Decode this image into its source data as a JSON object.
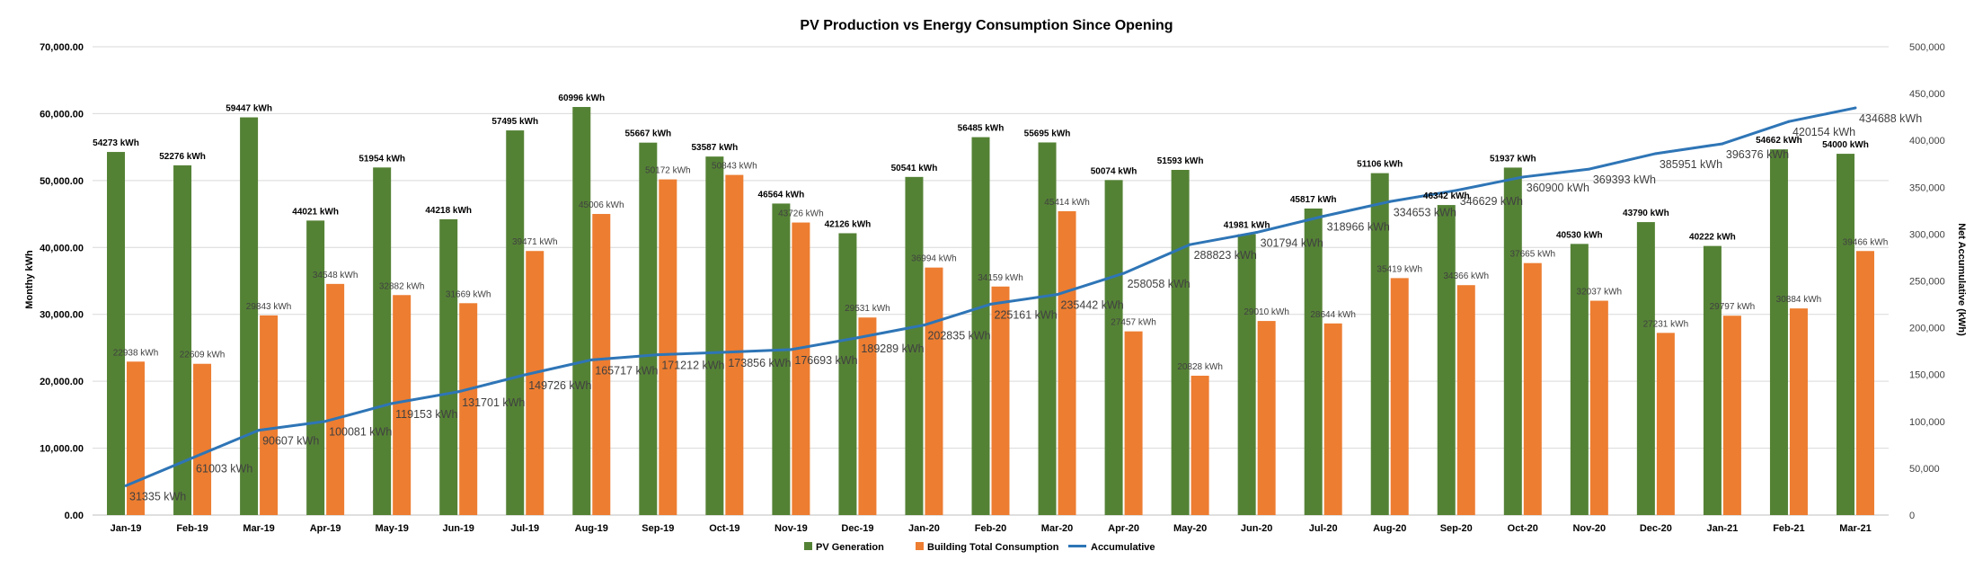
{
  "chart_data": {
    "type": "bar",
    "title": "PV Production vs Energy Consumption Since Opening",
    "ylabel": "Monthy kWh",
    "y2label": "Net Accumulative    (kWh)",
    "ylim": [
      0,
      70000
    ],
    "y2lim": [
      0,
      500000
    ],
    "yticks": [
      "0.00",
      "10,000.00",
      "20,000.00",
      "30,000.00",
      "40,000.00",
      "50,000.00",
      "60,000.00",
      "70,000.00"
    ],
    "y2ticks": [
      "0",
      "50,000",
      "100,000",
      "150,000",
      "200,000",
      "250,000",
      "300,000",
      "350,000",
      "400,000",
      "450,000",
      "500,000"
    ],
    "grid": true,
    "legend_position": "bottom",
    "categories": [
      "Jan-19",
      "Feb-19",
      "Mar-19",
      "Apr-19",
      "May-19",
      "Jun-19",
      "Jul-19",
      "Aug-19",
      "Sep-19",
      "Oct-19",
      "Nov-19",
      "Dec-19",
      "Jan-20",
      "Feb-20",
      "Mar-20",
      "Apr-20",
      "May-20",
      "Jun-20",
      "Jul-20",
      "Aug-20",
      "Sep-20",
      "Oct-20",
      "Nov-20",
      "Dec-20",
      "Jan-21",
      "Feb-21",
      "Mar-21"
    ],
    "series": [
      {
        "name": "PV Generation",
        "color": "#548235",
        "label_suffix": " kWh",
        "values": [
          54273,
          52276,
          59447,
          44021,
          51954,
          44218,
          57495,
          60996,
          55667,
          53587,
          46564,
          42126,
          50541,
          56485,
          55695,
          50074,
          51593,
          41981,
          45817,
          51106,
          46342,
          51937,
          40530,
          43790,
          40222,
          54662,
          54000
        ]
      },
      {
        "name": "Building Total Consumption",
        "color": "#ED7D31",
        "label_suffix": " kWh",
        "values": [
          22938,
          22609,
          29843,
          34548,
          32882,
          31669,
          39471,
          45006,
          50172,
          50843,
          43726,
          29531,
          36994,
          34159,
          45414,
          27457,
          20828,
          29010,
          28644,
          35419,
          34366,
          37665,
          32037,
          27231,
          29797,
          30884,
          39466
        ]
      },
      {
        "name": "Accumulative",
        "color": "#2E75B6",
        "axis": "secondary",
        "label_suffix": "   kWh",
        "values": [
          31335,
          61003,
          90607,
          100081,
          119153,
          131701,
          149726,
          165717,
          171212,
          173856,
          176693,
          189289,
          202835,
          225161,
          235442,
          258058,
          288823,
          301794,
          318966,
          334653,
          346629,
          360900,
          369393,
          385951,
          396376,
          420154,
          434688
        ]
      }
    ]
  }
}
